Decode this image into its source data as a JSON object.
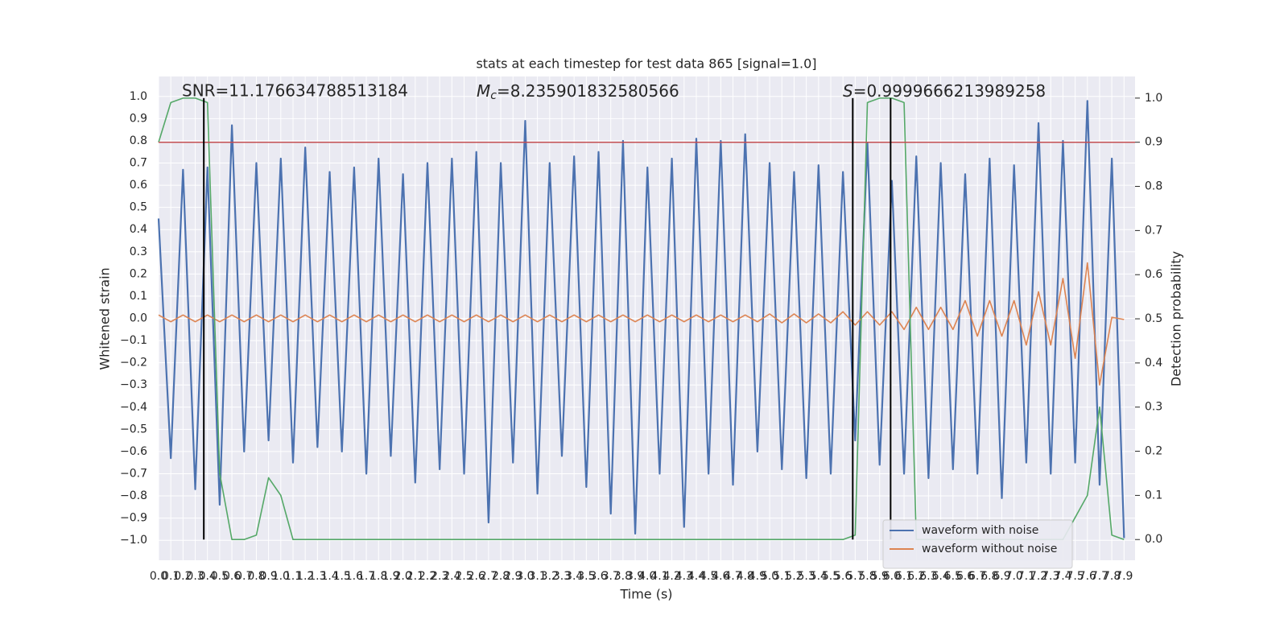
{
  "chart_data": {
    "type": "line",
    "title": "stats at each timestep for test data 865 [signal=1.0]",
    "x_label": "Time (s)",
    "y_label": "Whitened strain",
    "y2_label": "Detection probability",
    "annotations": {
      "snr": "SNR=11.176634788513184",
      "chirp_mass": {
        "symbol": "M",
        "subscript": "c",
        "text": "=8.235901832580566"
      },
      "score": {
        "symbol": "S",
        "text": "=0.9999666213989258"
      }
    },
    "x": [
      0.0,
      0.1,
      0.2,
      0.3,
      0.4,
      0.5,
      0.6,
      0.7,
      0.8,
      0.9,
      1.0,
      1.1,
      1.2,
      1.3,
      1.4,
      1.5,
      1.6,
      1.7,
      1.8,
      1.9,
      2.0,
      2.1,
      2.2,
      2.3,
      2.4,
      2.5,
      2.6,
      2.7,
      2.8,
      2.9,
      3.0,
      3.1,
      3.2,
      3.3,
      3.4,
      3.5,
      3.6,
      3.7,
      3.8,
      3.9,
      4.0,
      4.1,
      4.2,
      4.3,
      4.4,
      4.5,
      4.6,
      4.7,
      4.8,
      4.9,
      5.0,
      5.1,
      5.2,
      5.3,
      5.4,
      5.5,
      5.6,
      5.7,
      5.8,
      5.9,
      6.0,
      6.1,
      6.2,
      6.3,
      6.4,
      6.5,
      6.6,
      6.7,
      6.8,
      6.9,
      7.0,
      7.1,
      7.2,
      7.3,
      7.4,
      7.5,
      7.6,
      7.7,
      7.8,
      7.9
    ],
    "series": [
      {
        "name": "waveform with noise",
        "color": "#4c72b0",
        "values": [
          0.45,
          -0.63,
          0.67,
          -0.77,
          0.68,
          -0.84,
          0.87,
          -0.6,
          0.7,
          -0.55,
          0.72,
          -0.65,
          0.77,
          -0.58,
          0.66,
          -0.6,
          0.68,
          -0.7,
          0.72,
          -0.62,
          0.65,
          -0.74,
          0.7,
          -0.68,
          0.72,
          -0.7,
          0.75,
          -0.92,
          0.7,
          -0.65,
          0.89,
          -0.79,
          0.7,
          -0.62,
          0.73,
          -0.76,
          0.75,
          -0.88,
          0.8,
          -0.97,
          0.68,
          -0.7,
          0.72,
          -0.94,
          0.81,
          -0.7,
          0.8,
          -0.75,
          0.83,
          -0.6,
          0.7,
          -0.68,
          0.66,
          -0.72,
          0.69,
          -0.7,
          0.66,
          -0.55,
          0.79,
          -0.66,
          0.62,
          -0.7,
          0.73,
          -0.72,
          0.7,
          -0.68,
          0.65,
          -0.7,
          0.72,
          -0.81,
          0.69,
          -0.65,
          0.88,
          -0.7,
          0.8,
          -0.65,
          0.98,
          -0.75,
          0.72,
          -0.99
        ]
      },
      {
        "name": "waveform without noise",
        "color": "#dd8452",
        "values": [
          0.015,
          -0.015,
          0.015,
          -0.015,
          0.015,
          -0.015,
          0.015,
          -0.015,
          0.015,
          -0.015,
          0.015,
          -0.015,
          0.015,
          -0.015,
          0.015,
          -0.015,
          0.015,
          -0.015,
          0.015,
          -0.015,
          0.015,
          -0.015,
          0.015,
          -0.015,
          0.015,
          -0.015,
          0.015,
          -0.015,
          0.015,
          -0.015,
          0.015,
          -0.015,
          0.015,
          -0.015,
          0.015,
          -0.015,
          0.015,
          -0.015,
          0.015,
          -0.015,
          0.015,
          -0.015,
          0.015,
          -0.015,
          0.015,
          -0.015,
          0.015,
          -0.015,
          0.015,
          -0.015,
          0.02,
          -0.02,
          0.02,
          -0.02,
          0.02,
          -0.02,
          0.03,
          -0.03,
          0.03,
          -0.03,
          0.03,
          -0.05,
          0.05,
          -0.05,
          0.05,
          -0.05,
          0.08,
          -0.08,
          0.08,
          -0.08,
          0.08,
          -0.12,
          0.12,
          -0.12,
          0.18,
          -0.18,
          0.25,
          -0.3,
          0.005,
          -0.005
        ]
      },
      {
        "color": "#55a868",
        "axis": "y2",
        "values": [
          0.9,
          0.99,
          1.0,
          1.0,
          0.99,
          0.15,
          0.0,
          0.0,
          0.01,
          0.14,
          0.1,
          0.0,
          0.0,
          0.0,
          0.0,
          0.0,
          0.0,
          0.0,
          0.0,
          0.0,
          0.0,
          0.0,
          0.0,
          0.0,
          0.0,
          0.0,
          0.0,
          0.0,
          0.0,
          0.0,
          0.0,
          0.0,
          0.0,
          0.0,
          0.0,
          0.0,
          0.0,
          0.0,
          0.0,
          0.0,
          0.0,
          0.0,
          0.0,
          0.0,
          0.0,
          0.0,
          0.0,
          0.0,
          0.0,
          0.0,
          0.0,
          0.0,
          0.0,
          0.0,
          0.0,
          0.0,
          0.0,
          0.01,
          0.99,
          1.0,
          1.0,
          0.99,
          0.0,
          0.0,
          0.0,
          0.0,
          0.0,
          0.0,
          0.0,
          0.0,
          0.0,
          0.0,
          0.0,
          0.0,
          0.0,
          0.05,
          0.1,
          0.3,
          0.01,
          0.0
        ]
      }
    ],
    "threshold": {
      "value": 0.9,
      "axis": "y2",
      "color": "#c44e52"
    },
    "vlines": {
      "x": [
        0.37,
        5.68,
        5.99
      ],
      "span": [
        0.0,
        1.0
      ],
      "axis": "y2",
      "color": "#000000"
    },
    "xlim": [
      0,
      7.99
    ],
    "ylim": [
      -1.09,
      1.09
    ],
    "y2lim": [
      -0.047,
      1.049
    ],
    "xticks": [
      {
        "value": 0,
        "label": "0.0"
      },
      0.1,
      0.2,
      0.3,
      0.4,
      0.5,
      0.6,
      0.7,
      0.8,
      0.9,
      {
        "value": 1,
        "label": "1.0"
      },
      1.1,
      1.2,
      1.3,
      1.4,
      1.5,
      1.6,
      1.7,
      1.8,
      1.9,
      {
        "value": 2,
        "label": "2.0"
      },
      2.1,
      2.2,
      2.3,
      2.4,
      2.5,
      2.6,
      2.7,
      2.8,
      2.9,
      {
        "value": 3,
        "label": "3.0"
      },
      3.1,
      3.2,
      3.3,
      3.4,
      3.5,
      3.6,
      3.7,
      3.8,
      3.9,
      {
        "value": 4,
        "label": "4.0"
      },
      4.1,
      4.2,
      4.3,
      4.4,
      4.5,
      4.6,
      4.7,
      4.8,
      4.9,
      {
        "value": 5,
        "label": "5.0"
      },
      5.1,
      5.2,
      5.3,
      5.4,
      5.5,
      5.6,
      5.7,
      5.8,
      5.9,
      {
        "value": 6,
        "label": "6.0"
      },
      6.1,
      6.2,
      6.3,
      6.4,
      6.5,
      6.6,
      6.7,
      6.8,
      6.9,
      {
        "value": 7,
        "label": "7.0"
      },
      7.1,
      7.2,
      7.3,
      7.4,
      7.5,
      7.6,
      7.7,
      7.8,
      7.9
    ],
    "yticks": [
      {
        "value": -1,
        "label": "−1.0"
      },
      {
        "value": -0.9,
        "label": "−0.9"
      },
      {
        "value": -0.8,
        "label": "−0.8"
      },
      {
        "value": -0.7,
        "label": "−0.7"
      },
      {
        "value": -0.6,
        "label": "−0.6"
      },
      {
        "value": -0.5,
        "label": "−0.5"
      },
      {
        "value": -0.4,
        "label": "−0.4"
      },
      {
        "value": -0.3,
        "label": "−0.3"
      },
      {
        "value": -0.2,
        "label": "−0.2"
      },
      {
        "value": -0.1,
        "label": "−0.1"
      },
      {
        "value": 0,
        "label": "0.0"
      },
      0.1,
      0.2,
      0.3,
      0.4,
      0.5,
      0.6,
      0.7,
      0.8,
      0.9,
      {
        "value": 1,
        "label": "1.0"
      }
    ],
    "y2ticks": [
      {
        "value": 0,
        "label": "0.0"
      },
      0.1,
      0.2,
      0.3,
      0.4,
      0.5,
      0.6,
      0.7,
      0.8,
      0.9,
      {
        "value": 1,
        "label": "1.0"
      }
    ],
    "grid": true,
    "background": "#eaeaf2",
    "legend": "lower right"
  }
}
